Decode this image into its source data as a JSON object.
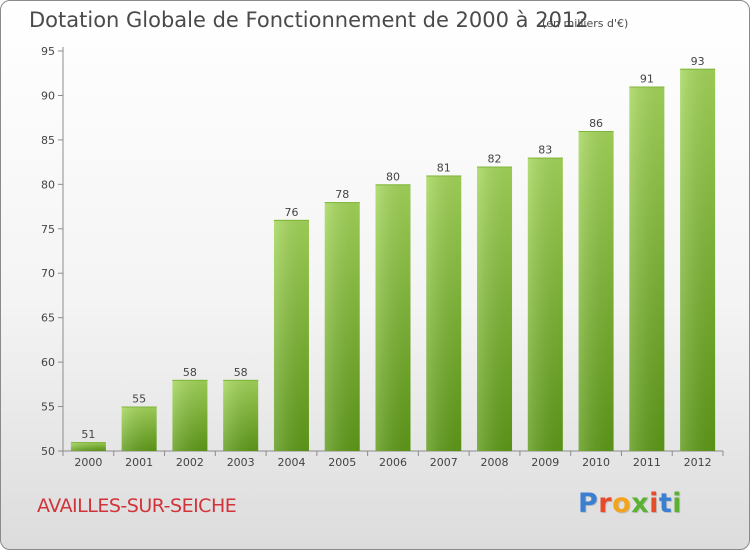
{
  "title": "Dotation Globale de Fonctionnement de 2000 à 2012",
  "unit": "(en milliers d'€)",
  "commune": "AVAILLES-SUR-SEICHE",
  "logo": {
    "text": "Proxiti",
    "letter_colors": [
      "#3a7fd0",
      "#e84b2a",
      "#f2a41c",
      "#5ab132",
      "#e84b2a",
      "#3a7fd0",
      "#5ab132"
    ]
  },
  "colors": {
    "bar_light": "#a4d65a",
    "bar_dark": "#5e9a18",
    "axis": "#8c8c8c",
    "text": "#444444",
    "commune": "#d2333a"
  },
  "chart_data": {
    "type": "bar",
    "categories": [
      "2000",
      "2001",
      "2002",
      "2003",
      "2004",
      "2005",
      "2006",
      "2007",
      "2008",
      "2009",
      "2010",
      "2011",
      "2012"
    ],
    "values": [
      51,
      55,
      58,
      58,
      76,
      78,
      80,
      81,
      82,
      83,
      86,
      91,
      93
    ],
    "data_labels": [
      "51",
      "55",
      "58",
      "58",
      "76",
      "78",
      "80",
      "81",
      "82",
      "83",
      "86",
      "91",
      "93"
    ],
    "yticks": [
      50,
      55,
      60,
      65,
      70,
      75,
      80,
      85,
      90,
      95
    ],
    "ylim": [
      50,
      95
    ],
    "title": "Dotation Globale de Fonctionnement de 2000 à 2012",
    "xlabel": "",
    "ylabel": "",
    "grid": false,
    "legend": "none"
  }
}
